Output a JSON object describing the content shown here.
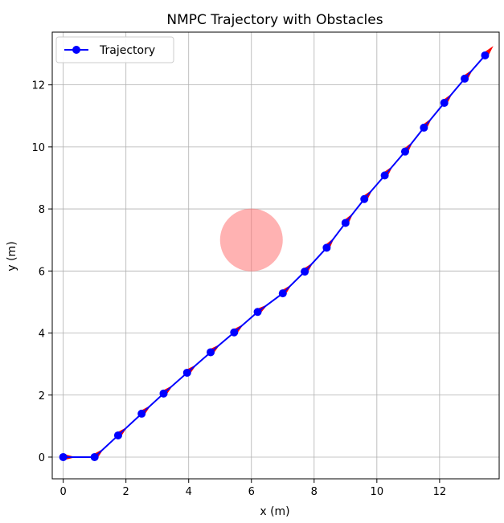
{
  "chart_data": {
    "type": "line",
    "title": "NMPC Trajectory with Obstacles",
    "xlabel": "x (m)",
    "ylabel": "y (m)",
    "xlim": [
      -0.35,
      13.9
    ],
    "ylim": [
      -0.7,
      13.7
    ],
    "xticks": [
      0,
      2,
      4,
      6,
      8,
      10,
      12
    ],
    "yticks": [
      0,
      2,
      4,
      6,
      8,
      10,
      12
    ],
    "grid": true,
    "legend_position": "top-left",
    "series": [
      {
        "name": "Trajectory",
        "color": "#0000ff",
        "marker": "circle",
        "x": [
          0,
          1.0,
          1.75,
          2.5,
          3.2,
          3.95,
          4.7,
          5.45,
          6.2,
          7.0,
          7.7,
          8.4,
          9.0,
          9.6,
          10.25,
          10.9,
          11.5,
          12.15,
          12.8,
          13.45
        ],
        "y": [
          0,
          0,
          0.7,
          1.4,
          2.05,
          2.72,
          3.38,
          4.02,
          4.68,
          5.28,
          5.98,
          6.75,
          7.55,
          8.32,
          9.08,
          9.85,
          10.62,
          11.42,
          12.2,
          12.95
        ]
      }
    ],
    "obstacles": [
      {
        "center_x": 6.0,
        "center_y": 7.0,
        "radius": 1.0,
        "color": "#ff6666",
        "opacity": 0.5
      }
    ],
    "heading_arrows": {
      "color": "#ff0000",
      "length": 0.4
    }
  }
}
